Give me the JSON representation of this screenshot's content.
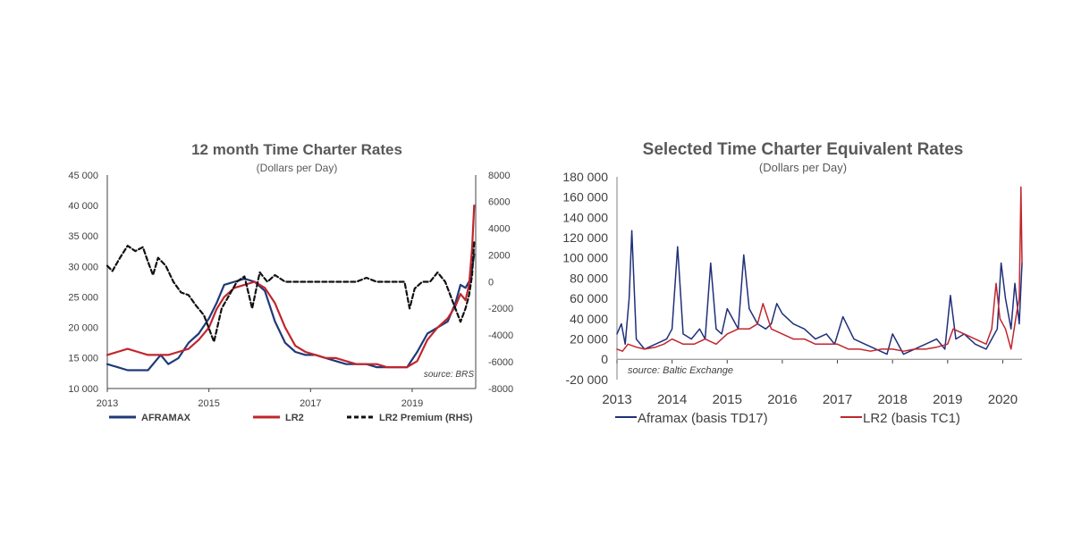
{
  "chart_data": [
    {
      "type": "line",
      "title": "12 month Time Charter Rates",
      "subtitle": "(Dollars per Day)",
      "source": "source: BRS",
      "xlim": [
        2013,
        2020.25
      ],
      "x_ticks": [
        2013,
        2015,
        2017,
        2019
      ],
      "x_tick_labels": [
        "2013",
        "2015",
        "2017",
        "2019"
      ],
      "ylim": [
        10000,
        45000
      ],
      "y_ticks": [
        10000,
        15000,
        20000,
        25000,
        30000,
        35000,
        40000,
        45000
      ],
      "y_tick_labels": [
        "10 000",
        "15 000",
        "20 000",
        "25 000",
        "30 000",
        "35 000",
        "40 000",
        "45 000"
      ],
      "y2lim": [
        -8000,
        8000
      ],
      "y2_ticks": [
        -8000,
        -6000,
        -4000,
        -2000,
        0,
        2000,
        4000,
        6000,
        8000
      ],
      "y2_tick_labels": [
        "-8000",
        "-6000",
        "-4000",
        "-2000",
        "0",
        "2000",
        "4000",
        "6000",
        "8000"
      ],
      "series": [
        {
          "name": "AFRAMAX",
          "color": "#1f3a7a",
          "style": "solid",
          "axis": "left",
          "x": [
            2013.0,
            2013.2,
            2013.4,
            2013.6,
            2013.8,
            2013.95,
            2014.05,
            2014.2,
            2014.4,
            2014.6,
            2014.8,
            2015.0,
            2015.15,
            2015.3,
            2015.5,
            2015.7,
            2015.9,
            2016.1,
            2016.3,
            2016.5,
            2016.7,
            2016.9,
            2017.1,
            2017.3,
            2017.5,
            2017.7,
            2017.9,
            2018.1,
            2018.3,
            2018.5,
            2018.7,
            2018.9,
            2019.1,
            2019.3,
            2019.5,
            2019.7,
            2019.85,
            2019.95,
            2020.05,
            2020.15,
            2020.22
          ],
          "values": [
            14000,
            13500,
            13000,
            13000,
            13000,
            14500,
            15500,
            14000,
            15000,
            17500,
            19000,
            21500,
            24000,
            27000,
            27500,
            28000,
            27500,
            26000,
            21000,
            17500,
            16000,
            15500,
            15500,
            15000,
            14500,
            14000,
            14000,
            14000,
            13500,
            13500,
            13500,
            13500,
            16000,
            19000,
            20000,
            21000,
            24000,
            27000,
            26500,
            28000,
            32000
          ]
        },
        {
          "name": "LR2",
          "color": "#c0262d",
          "style": "solid",
          "axis": "left",
          "x": [
            2013.0,
            2013.2,
            2013.4,
            2013.6,
            2013.8,
            2014.0,
            2014.2,
            2014.4,
            2014.6,
            2014.8,
            2015.0,
            2015.15,
            2015.3,
            2015.5,
            2015.7,
            2015.9,
            2016.1,
            2016.3,
            2016.5,
            2016.7,
            2016.9,
            2017.1,
            2017.3,
            2017.5,
            2017.7,
            2017.9,
            2018.1,
            2018.3,
            2018.5,
            2018.7,
            2018.9,
            2019.1,
            2019.3,
            2019.5,
            2019.7,
            2019.85,
            2019.95,
            2020.05,
            2020.12,
            2020.18,
            2020.22
          ],
          "values": [
            15500,
            16000,
            16500,
            16000,
            15500,
            15500,
            15500,
            16000,
            16500,
            18000,
            20000,
            23000,
            25000,
            26500,
            27000,
            27500,
            26500,
            24000,
            20000,
            17000,
            16000,
            15500,
            15000,
            15000,
            14500,
            14000,
            14000,
            14000,
            13500,
            13500,
            13500,
            14500,
            18000,
            20000,
            21500,
            23500,
            25500,
            24500,
            27000,
            33000,
            40000
          ]
        },
        {
          "name": "LR2 Premium (RHS)",
          "color": "#111111",
          "style": "dashed",
          "axis": "right",
          "x": [
            2013.0,
            2013.1,
            2013.25,
            2013.4,
            2013.55,
            2013.7,
            2013.8,
            2013.9,
            2014.0,
            2014.15,
            2014.3,
            2014.45,
            2014.6,
            2014.75,
            2014.9,
            2015.0,
            2015.1,
            2015.25,
            2015.4,
            2015.55,
            2015.7,
            2015.85,
            2016.0,
            2016.15,
            2016.3,
            2016.5,
            2016.7,
            2016.9,
            2017.1,
            2017.3,
            2017.5,
            2017.7,
            2017.9,
            2018.1,
            2018.3,
            2018.5,
            2018.7,
            2018.85,
            2018.95,
            2019.05,
            2019.2,
            2019.35,
            2019.5,
            2019.65,
            2019.8,
            2019.95,
            2020.05,
            2020.12,
            2020.18,
            2020.22
          ],
          "values": [
            1200,
            800,
            1800,
            2700,
            2300,
            2600,
            1500,
            500,
            1800,
            1200,
            0,
            -800,
            -1000,
            -1800,
            -2500,
            -3500,
            -4500,
            -2000,
            -1000,
            0,
            400,
            -2000,
            700,
            0,
            500,
            0,
            0,
            0,
            0,
            0,
            0,
            0,
            0,
            300,
            0,
            0,
            0,
            0,
            -2000,
            -500,
            0,
            0,
            700,
            0,
            -1500,
            -3000,
            -2000,
            -1000,
            500,
            3000
          ]
        }
      ],
      "legend": [
        "AFRAMAX",
        "LR2",
        "LR2 Premium (RHS)"
      ],
      "legend_position": "bottom"
    },
    {
      "type": "line",
      "title": "Selected Time Charter Equivalent Rates",
      "subtitle": "(Dollars per Day)",
      "source": "source: Baltic Exchange",
      "xlim": [
        2013,
        2020.35
      ],
      "x_ticks": [
        2013,
        2014,
        2015,
        2016,
        2017,
        2018,
        2019,
        2020
      ],
      "x_tick_labels": [
        "2013",
        "2014",
        "2015",
        "2016",
        "2017",
        "2018",
        "2019",
        "2020"
      ],
      "ylim": [
        -20000,
        180000
      ],
      "y_ticks": [
        -20000,
        0,
        20000,
        40000,
        60000,
        80000,
        100000,
        120000,
        140000,
        160000,
        180000
      ],
      "y_tick_labels": [
        "-20 000",
        "0",
        "20 000",
        "40 000",
        "60 000",
        "80 000",
        "100 000",
        "120 000",
        "140 000",
        "160 000",
        "180 000"
      ],
      "series": [
        {
          "name": "Aframax (basis TD17)",
          "color": "#1f2f7a",
          "style": "solid",
          "x": [
            2013.0,
            2013.08,
            2013.15,
            2013.22,
            2013.27,
            2013.35,
            2013.5,
            2013.7,
            2013.9,
            2014.0,
            2014.1,
            2014.2,
            2014.35,
            2014.5,
            2014.6,
            2014.7,
            2014.8,
            2014.9,
            2015.0,
            2015.1,
            2015.2,
            2015.3,
            2015.4,
            2015.55,
            2015.7,
            2015.8,
            2015.9,
            2016.0,
            2016.2,
            2016.4,
            2016.6,
            2016.8,
            2016.95,
            2017.1,
            2017.3,
            2017.5,
            2017.7,
            2017.9,
            2018.0,
            2018.2,
            2018.4,
            2018.6,
            2018.8,
            2018.95,
            2019.05,
            2019.15,
            2019.3,
            2019.5,
            2019.7,
            2019.8,
            2019.9,
            2019.97,
            2020.05,
            2020.15,
            2020.22,
            2020.3,
            2020.35
          ],
          "values": [
            25000,
            35000,
            15000,
            60000,
            127000,
            20000,
            10000,
            15000,
            20000,
            30000,
            111000,
            25000,
            20000,
            30000,
            20000,
            95000,
            30000,
            25000,
            50000,
            40000,
            30000,
            103000,
            50000,
            35000,
            30000,
            35000,
            55000,
            45000,
            35000,
            30000,
            20000,
            25000,
            15000,
            42000,
            20000,
            15000,
            10000,
            5000,
            25000,
            5000,
            10000,
            15000,
            20000,
            10000,
            63000,
            20000,
            25000,
            15000,
            10000,
            20000,
            30000,
            95000,
            60000,
            30000,
            75000,
            35000,
            95000
          ]
        },
        {
          "name": "LR2 (basis TC1)",
          "color": "#c0262d",
          "style": "solid",
          "x": [
            2013.0,
            2013.1,
            2013.2,
            2013.35,
            2013.5,
            2013.7,
            2013.85,
            2014.0,
            2014.2,
            2014.4,
            2014.6,
            2014.8,
            2015.0,
            2015.2,
            2015.4,
            2015.55,
            2015.65,
            2015.8,
            2016.0,
            2016.2,
            2016.4,
            2016.6,
            2016.8,
            2017.0,
            2017.2,
            2017.4,
            2017.6,
            2017.8,
            2018.0,
            2018.2,
            2018.4,
            2018.6,
            2018.8,
            2019.0,
            2019.1,
            2019.3,
            2019.5,
            2019.7,
            2019.8,
            2019.88,
            2019.95,
            2020.05,
            2020.15,
            2020.25,
            2020.3,
            2020.33,
            2020.35
          ],
          "values": [
            10000,
            8000,
            15000,
            12000,
            10000,
            12000,
            15000,
            20000,
            15000,
            15000,
            20000,
            15000,
            25000,
            30000,
            30000,
            35000,
            55000,
            30000,
            25000,
            20000,
            20000,
            15000,
            15000,
            15000,
            10000,
            10000,
            8000,
            10000,
            10000,
            8000,
            10000,
            10000,
            12000,
            15000,
            30000,
            25000,
            20000,
            15000,
            30000,
            75000,
            40000,
            30000,
            10000,
            45000,
            60000,
            170000,
            95000
          ]
        }
      ],
      "legend": [
        "Aframax (basis TD17)",
        "LR2 (basis TC1)"
      ],
      "legend_position": "bottom"
    }
  ]
}
